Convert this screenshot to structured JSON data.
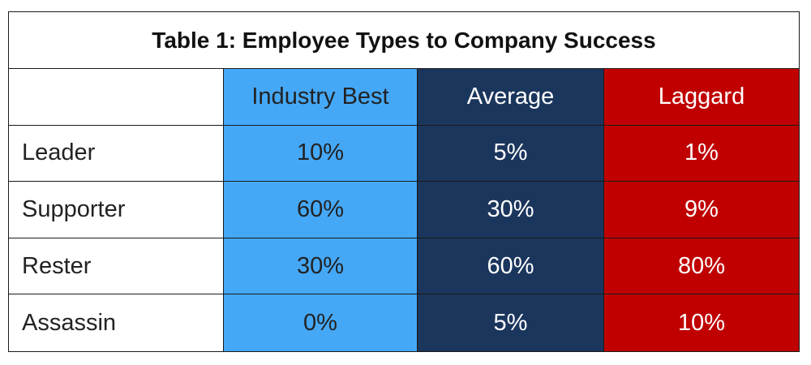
{
  "chart_data": {
    "type": "table",
    "title": "Table 1: Employee Types to Company Success",
    "columns": [
      "",
      "Industry Best",
      "Average",
      "Laggard"
    ],
    "column_colors": [
      "#ffffff",
      "#45a8f7",
      "#1b365d",
      "#c00000"
    ],
    "rows": [
      {
        "label": "Leader",
        "values": [
          "10%",
          "5%",
          "1%"
        ]
      },
      {
        "label": "Supporter",
        "values": [
          "60%",
          "30%",
          "9%"
        ]
      },
      {
        "label": "Rester",
        "values": [
          "30%",
          "60%",
          "80%"
        ]
      },
      {
        "label": "Assassin",
        "values": [
          "0%",
          "5%",
          "10%"
        ]
      }
    ]
  }
}
